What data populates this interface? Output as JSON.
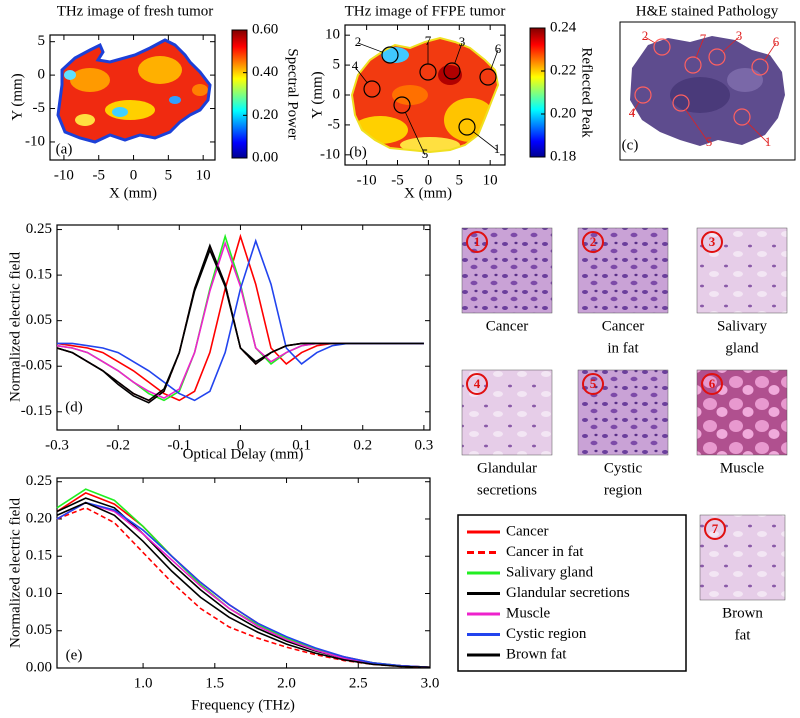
{
  "chart_data": [
    {
      "type": "image",
      "title": "THz image of fresh tumor",
      "panel_label": "(a)",
      "x_label": "X (mm)",
      "y_label": "Y (mm)",
      "xlim": [
        -12,
        11.7
      ],
      "xticks": [
        -10,
        -5,
        0,
        5,
        10
      ],
      "ylim": [
        -12.7,
        6
      ],
      "yticks": [
        5,
        0,
        -5,
        -10
      ],
      "colorbar": {
        "label": "Spectral Power",
        "lim": [
          0,
          0.6
        ],
        "colormap": "jet",
        "ticks": [
          {
            "value": 0,
            "label": "0.00"
          },
          {
            "value": 0.2,
            "label": "0.20"
          },
          {
            "value": 0.4,
            "label": "0.40"
          },
          {
            "value": 0.6,
            "label": "0.60"
          }
        ]
      }
    },
    {
      "type": "image",
      "title": "THz image of FFPE tumor",
      "panel_label": "(b)",
      "x_label": "X (mm)",
      "y_label": "Y (mm)",
      "xlim": [
        -13.5,
        12.4
      ],
      "xticks": [
        -10,
        -5,
        0,
        5,
        10
      ],
      "ylim": [
        -11.7,
        11.7
      ],
      "yticks": [
        10,
        5,
        0,
        -5,
        -10
      ],
      "colorbar": {
        "label": "Reflected Peak",
        "lim": [
          0.18,
          0.24
        ],
        "colormap": "jet",
        "ticks": [
          {
            "value": 0.18,
            "label": "0.18"
          },
          {
            "value": 0.2,
            "label": "0.20"
          },
          {
            "value": 0.22,
            "label": "0.22"
          },
          {
            "value": 0.24,
            "label": "0.24"
          }
        ]
      },
      "markers": [
        "1",
        "2",
        "3",
        "4",
        "5",
        "6",
        "7"
      ]
    },
    {
      "type": "image",
      "title": "H&E stained Pathology",
      "panel_label": "(c)",
      "markers": [
        "1",
        "2",
        "3",
        "4",
        "5",
        "6",
        "7"
      ]
    },
    {
      "type": "line",
      "panel_label": "(d)",
      "x_label": "Optical Delay (mm)",
      "y_label": "Normalized electric field",
      "xlim": [
        -0.3,
        0.31
      ],
      "xticks": [
        -0.3,
        -0.2,
        -0.1,
        0,
        0.1,
        0.2,
        0.3
      ],
      "ylim": [
        -0.19,
        0.26
      ],
      "yticks": [
        0.25,
        0.15,
        0.05,
        -0.05,
        -0.15
      ],
      "x": [
        -0.3,
        -0.275,
        -0.25,
        -0.225,
        -0.2,
        -0.175,
        -0.15,
        -0.125,
        -0.1,
        -0.075,
        -0.05,
        -0.025,
        0,
        0.025,
        0.05,
        0.075,
        0.1,
        0.125,
        0.15,
        0.175,
        0.2,
        0.225,
        0.25,
        0.275,
        0.3
      ],
      "series": [
        {
          "color": "#ff0000",
          "dash": false,
          "values": [
            0,
            -0.005,
            -0.01,
            -0.02,
            -0.04,
            -0.06,
            -0.085,
            -0.11,
            -0.125,
            -0.105,
            -0.02,
            0.12,
            0.235,
            0.13,
            -0.01,
            -0.045,
            -0.02,
            -0.005,
            0,
            0,
            0,
            0,
            0,
            0,
            0
          ]
        },
        {
          "color": "#ff0000",
          "dash": true,
          "values": [
            -0.01,
            -0.02,
            -0.04,
            -0.06,
            -0.085,
            -0.11,
            -0.125,
            -0.105,
            -0.02,
            0.12,
            0.21,
            0.13,
            -0.01,
            -0.045,
            -0.02,
            -0.005,
            0,
            0,
            0,
            0,
            0,
            0,
            0,
            0,
            0
          ]
        },
        {
          "color": "#22ee22",
          "dash": false,
          "values": [
            -0.005,
            -0.01,
            -0.02,
            -0.04,
            -0.06,
            -0.085,
            -0.11,
            -0.125,
            -0.105,
            -0.02,
            0.12,
            0.235,
            0.13,
            -0.01,
            -0.045,
            -0.02,
            -0.005,
            0,
            0,
            0,
            0,
            0,
            0,
            0,
            0
          ]
        },
        {
          "color": "#000000",
          "dash": false,
          "values": [
            -0.01,
            -0.02,
            -0.04,
            -0.06,
            -0.09,
            -0.115,
            -0.13,
            -0.105,
            -0.02,
            0.12,
            0.215,
            0.13,
            -0.01,
            -0.045,
            -0.02,
            -0.005,
            0,
            0,
            0,
            0,
            0,
            0,
            0,
            0,
            0
          ]
        },
        {
          "color": "#ee22cc",
          "dash": false,
          "values": [
            -0.005,
            -0.01,
            -0.02,
            -0.04,
            -0.06,
            -0.085,
            -0.105,
            -0.12,
            -0.1,
            -0.02,
            0.115,
            0.22,
            0.125,
            -0.01,
            -0.04,
            -0.02,
            -0.005,
            0,
            0,
            0,
            0,
            0,
            0,
            0,
            0
          ]
        },
        {
          "color": "#2244ee",
          "dash": false,
          "values": [
            0,
            0,
            -0.005,
            -0.01,
            -0.02,
            -0.04,
            -0.06,
            -0.085,
            -0.11,
            -0.125,
            -0.105,
            -0.02,
            0.12,
            0.225,
            0.13,
            -0.01,
            -0.045,
            -0.02,
            -0.005,
            0,
            0,
            0,
            0,
            0,
            0
          ]
        },
        {
          "color": "#000000",
          "dash": false,
          "values": [
            -0.01,
            -0.02,
            -0.04,
            -0.06,
            -0.085,
            -0.11,
            -0.125,
            -0.1,
            -0.02,
            0.115,
            0.205,
            0.125,
            -0.01,
            -0.04,
            -0.02,
            -0.005,
            0,
            0,
            0,
            0,
            0,
            0,
            0,
            0,
            0
          ]
        }
      ]
    },
    {
      "type": "line",
      "panel_label": "(e)",
      "x_label": "Frequency (THz)",
      "y_label": "Normalized electric field",
      "xlim": [
        0.4,
        3.0
      ],
      "xticks": [
        {
          "value": 1,
          "label": "1.0"
        },
        {
          "value": 1.5,
          "label": "1.5"
        },
        {
          "value": 2,
          "label": "2.0"
        },
        {
          "value": 2.5,
          "label": "2.5"
        },
        {
          "value": 3,
          "label": "3.0"
        }
      ],
      "ylim": [
        0,
        0.255
      ],
      "yticks": [
        {
          "value": 0,
          "label": "0.00"
        },
        {
          "value": 0.05,
          "label": "0.05"
        },
        {
          "value": 0.1,
          "label": "0.10"
        },
        {
          "value": 0.15,
          "label": "0.15"
        },
        {
          "value": 0.2,
          "label": "0.20"
        },
        {
          "value": 0.25,
          "label": "0.25"
        }
      ],
      "x": [
        0.4,
        0.6,
        0.8,
        1.0,
        1.2,
        1.4,
        1.6,
        1.8,
        2.0,
        2.2,
        2.4,
        2.6,
        2.8,
        3.0
      ],
      "series": [
        {
          "name": "Cancer",
          "color": "#ff0000",
          "dash": false,
          "values": [
            0.21,
            0.235,
            0.22,
            0.19,
            0.15,
            0.115,
            0.085,
            0.06,
            0.04,
            0.025,
            0.015,
            0.007,
            0.003,
            0.001
          ]
        },
        {
          "name": "Cancer in fat",
          "color": "#ff0000",
          "dash": true,
          "values": [
            0.2,
            0.215,
            0.195,
            0.155,
            0.115,
            0.08,
            0.055,
            0.04,
            0.028,
            0.018,
            0.01,
            0.005,
            0.002,
            0.001
          ]
        },
        {
          "name": "Salivary gland",
          "color": "#22ee22",
          "dash": false,
          "values": [
            0.215,
            0.24,
            0.225,
            0.19,
            0.15,
            0.112,
            0.08,
            0.058,
            0.04,
            0.025,
            0.014,
            0.007,
            0.003,
            0.001
          ]
        },
        {
          "name": "Glandular secretions",
          "color": "#000000",
          "dash": false,
          "values": [
            0.21,
            0.228,
            0.215,
            0.18,
            0.14,
            0.105,
            0.075,
            0.053,
            0.036,
            0.023,
            0.013,
            0.006,
            0.003,
            0.001
          ]
        },
        {
          "name": "Muscle",
          "color": "#ee22cc",
          "dash": false,
          "values": [
            0.2,
            0.222,
            0.21,
            0.18,
            0.145,
            0.11,
            0.08,
            0.056,
            0.038,
            0.024,
            0.013,
            0.006,
            0.003,
            0.001
          ]
        },
        {
          "name": "Cystic region",
          "color": "#2244ee",
          "dash": false,
          "values": [
            0.2,
            0.222,
            0.212,
            0.185,
            0.15,
            0.115,
            0.085,
            0.06,
            0.042,
            0.027,
            0.015,
            0.007,
            0.003,
            0.001
          ]
        },
        {
          "name": "Brown fat",
          "color": "#000000",
          "dash": false,
          "values": [
            0.205,
            0.222,
            0.205,
            0.17,
            0.13,
            0.095,
            0.068,
            0.048,
            0.032,
            0.02,
            0.011,
            0.005,
            0.002,
            0.001
          ]
        }
      ]
    }
  ],
  "tissue_samples": [
    {
      "number": "1",
      "label": [
        "Cancer"
      ]
    },
    {
      "number": "2",
      "label": [
        "Cancer",
        "in fat"
      ]
    },
    {
      "number": "3",
      "label": [
        "Salivary",
        "gland"
      ]
    },
    {
      "number": "4",
      "label": [
        "Glandular",
        "secretions"
      ]
    },
    {
      "number": "5",
      "label": [
        "Cystic",
        "region"
      ]
    },
    {
      "number": "6",
      "label": [
        "Muscle"
      ]
    },
    {
      "number": "7",
      "label": [
        "Brown",
        "fat"
      ]
    }
  ]
}
